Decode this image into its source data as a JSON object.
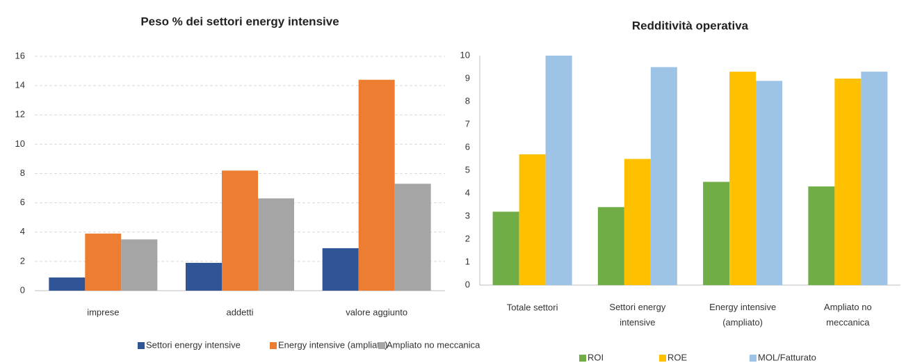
{
  "chart_data": [
    {
      "type": "bar",
      "title": "Peso % dei settori energy intensive",
      "categories": [
        "imprese",
        "addetti",
        "valore aggiunto"
      ],
      "series": [
        {
          "name": "Settori energy intensive",
          "color": "#2f5597",
          "values": [
            0.9,
            1.9,
            2.9
          ]
        },
        {
          "name": "Energy intensive (ampliato)",
          "color": "#ed7d31",
          "values": [
            3.9,
            8.2,
            14.4
          ]
        },
        {
          "name": "Ampliato no meccanica",
          "color": "#a5a5a5",
          "values": [
            3.5,
            6.3,
            7.3
          ]
        }
      ],
      "ylim": [
        0,
        16
      ],
      "yticks": [
        0,
        2,
        4,
        6,
        8,
        10,
        12,
        14,
        16
      ],
      "grid": true,
      "legend": "bottom"
    },
    {
      "type": "bar",
      "title": "Redditività operativa",
      "categories": [
        "Totale settori",
        "Settori energy intensive",
        "Energy intensive (ampliato)",
        "Ampliato no meccanica"
      ],
      "series": [
        {
          "name": "ROI",
          "color": "#70ad47",
          "values": [
            3.2,
            3.4,
            4.5,
            4.3
          ]
        },
        {
          "name": "ROE",
          "color": "#ffc000",
          "values": [
            5.7,
            5.5,
            9.3,
            9.0
          ]
        },
        {
          "name": "MOL/Fatturato",
          "color": "#9dc3e6",
          "values": [
            10.0,
            9.5,
            8.9,
            9.3
          ]
        }
      ],
      "ylim": [
        0,
        10
      ],
      "yticks": [
        0,
        1,
        2,
        3,
        4,
        5,
        6,
        7,
        8,
        9,
        10
      ],
      "grid": false,
      "legend": "bottom"
    }
  ]
}
